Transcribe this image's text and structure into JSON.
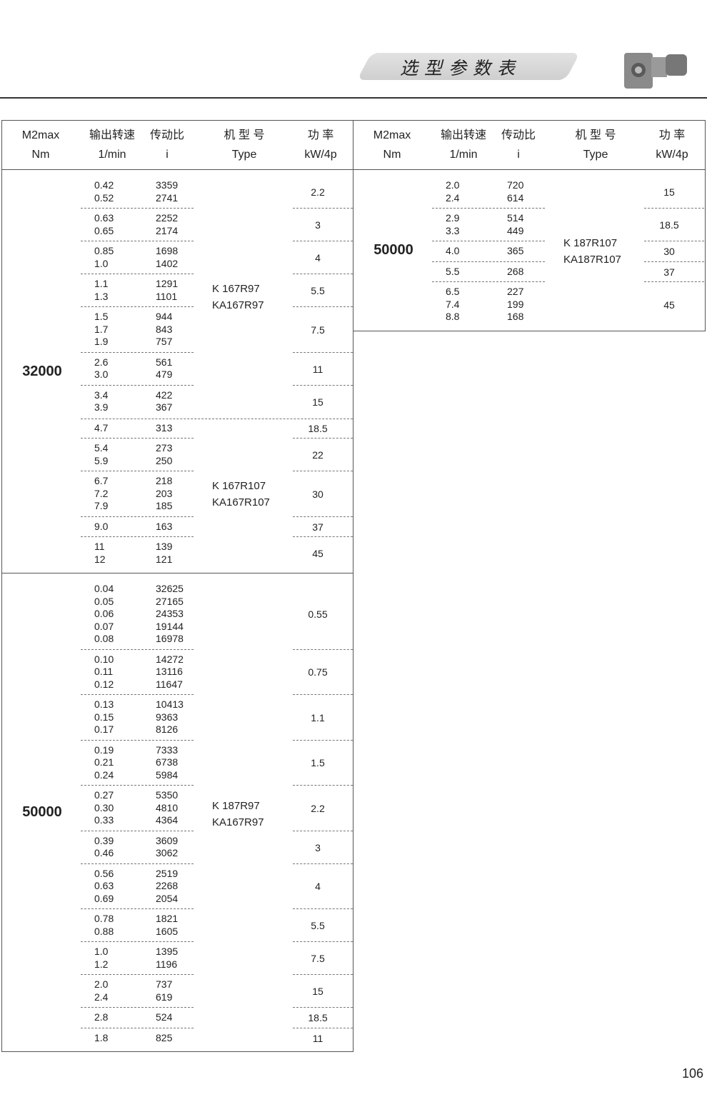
{
  "banner": {
    "title": "选型参数表",
    "image": "gear-motor-photo"
  },
  "header": [
    {
      "line1": "M2max",
      "line2": "Nm"
    },
    {
      "line1": "输出转速",
      "line2": "1/min"
    },
    {
      "line1": "传动比",
      "line2": "i"
    },
    {
      "line1": "机 型 号",
      "line2": "Type"
    },
    {
      "line1": "功  率",
      "line2": "kW/4p"
    }
  ],
  "left": [
    {
      "nm": "32000",
      "subs": [
        {
          "type": [
            "K 167R97",
            "KA167R97"
          ],
          "groups": [
            {
              "rows": [
                [
                  "0.42",
                  "3359"
                ],
                [
                  "0.52",
                  "2741"
                ]
              ],
              "power": "2.2"
            },
            {
              "rows": [
                [
                  "0.63",
                  "2252"
                ],
                [
                  "0.65",
                  "2174"
                ]
              ],
              "power": "3"
            },
            {
              "rows": [
                [
                  "0.85",
                  "1698"
                ],
                [
                  "1.0",
                  "1402"
                ]
              ],
              "power": "4"
            },
            {
              "rows": [
                [
                  "1.1",
                  "1291"
                ],
                [
                  "1.3",
                  "1101"
                ]
              ],
              "power": "5.5"
            },
            {
              "rows": [
                [
                  "1.5",
                  "944"
                ],
                [
                  "1.7",
                  "843"
                ],
                [
                  "1.9",
                  "757"
                ]
              ],
              "power": "7.5"
            },
            {
              "rows": [
                [
                  "2.6",
                  "561"
                ],
                [
                  "3.0",
                  "479"
                ]
              ],
              "power": "11"
            },
            {
              "rows": [
                [
                  "3.4",
                  "422"
                ],
                [
                  "3.9",
                  "367"
                ]
              ],
              "power": "15"
            }
          ]
        },
        {
          "type": [
            "K 167R107",
            "KA167R107"
          ],
          "groups": [
            {
              "rows": [
                [
                  "4.7",
                  "313"
                ]
              ],
              "power": "18.5"
            },
            {
              "rows": [
                [
                  "5.4",
                  "273"
                ],
                [
                  "5.9",
                  "250"
                ]
              ],
              "power": "22"
            },
            {
              "rows": [
                [
                  "6.7",
                  "218"
                ],
                [
                  "7.2",
                  "203"
                ],
                [
                  "7.9",
                  "185"
                ]
              ],
              "power": "30"
            },
            {
              "rows": [
                [
                  "9.0",
                  "163"
                ]
              ],
              "power": "37"
            },
            {
              "rows": [
                [
                  "11",
                  "139"
                ],
                [
                  "12",
                  "121"
                ]
              ],
              "power": "45"
            }
          ]
        }
      ]
    },
    {
      "nm": "50000",
      "subs": [
        {
          "type": [
            "K 187R97",
            "KA167R97"
          ],
          "groups": [
            {
              "rows": [
                [
                  "0.04",
                  "32625"
                ],
                [
                  "0.05",
                  "27165"
                ],
                [
                  "0.06",
                  "24353"
                ],
                [
                  "0.07",
                  "19144"
                ],
                [
                  "0.08",
                  "16978"
                ]
              ],
              "power": "0.55"
            },
            {
              "rows": [
                [
                  "0.10",
                  "14272"
                ],
                [
                  "0.11",
                  "13116"
                ],
                [
                  "0.12",
                  "11647"
                ]
              ],
              "power": "0.75"
            },
            {
              "rows": [
                [
                  "0.13",
                  "10413"
                ],
                [
                  "0.15",
                  "9363"
                ],
                [
                  "0.17",
                  "8126"
                ]
              ],
              "power": "1.1"
            },
            {
              "rows": [
                [
                  "0.19",
                  "7333"
                ],
                [
                  "0.21",
                  "6738"
                ],
                [
                  "0.24",
                  "5984"
                ]
              ],
              "power": "1.5"
            },
            {
              "rows": [
                [
                  "0.27",
                  "5350"
                ],
                [
                  "0.30",
                  "4810"
                ],
                [
                  "0.33",
                  "4364"
                ]
              ],
              "power": "2.2"
            },
            {
              "rows": [
                [
                  "0.39",
                  "3609"
                ],
                [
                  "0.46",
                  "3062"
                ]
              ],
              "power": "3"
            },
            {
              "rows": [
                [
                  "0.56",
                  "2519"
                ],
                [
                  "0.63",
                  "2268"
                ],
                [
                  "0.69",
                  "2054"
                ]
              ],
              "power": "4"
            },
            {
              "rows": [
                [
                  "0.78",
                  "1821"
                ],
                [
                  "0.88",
                  "1605"
                ]
              ],
              "power": "5.5"
            },
            {
              "rows": [
                [
                  "1.0",
                  "1395"
                ],
                [
                  "1.2",
                  "1196"
                ]
              ],
              "power": "7.5"
            },
            {
              "rows": [
                [
                  "2.0",
                  "737"
                ],
                [
                  "2.4",
                  "619"
                ]
              ],
              "power": "15"
            },
            {
              "rows": [
                [
                  "2.8",
                  "524"
                ]
              ],
              "power": "18.5"
            },
            {
              "rows": [
                [
                  "1.8",
                  "825"
                ]
              ],
              "power": "11"
            }
          ]
        }
      ]
    }
  ],
  "right": [
    {
      "nm": "50000",
      "subs": [
        {
          "type": [
            "K 187R107",
            "KA187R107"
          ],
          "groups": [
            {
              "rows": [
                [
                  "2.0",
                  "720"
                ],
                [
                  "2.4",
                  "614"
                ]
              ],
              "power": "15"
            },
            {
              "rows": [
                [
                  "2.9",
                  "514"
                ],
                [
                  "3.3",
                  "449"
                ]
              ],
              "power": "18.5"
            },
            {
              "rows": [
                [
                  "4.0",
                  "365"
                ]
              ],
              "power": "30"
            },
            {
              "rows": [
                [
                  "5.5",
                  "268"
                ]
              ],
              "power": "37"
            },
            {
              "rows": [
                [
                  "6.5",
                  "227"
                ],
                [
                  "7.4",
                  "199"
                ],
                [
                  "8.8",
                  "168"
                ]
              ],
              "power": "45"
            }
          ]
        }
      ]
    }
  ],
  "page_number": "106"
}
